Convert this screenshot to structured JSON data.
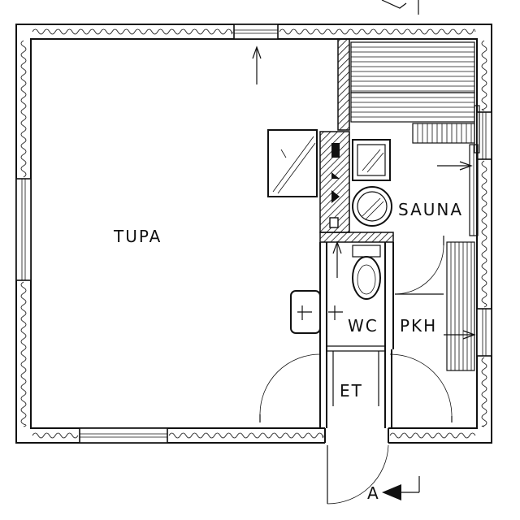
{
  "rooms": {
    "tupa": "TUPA",
    "sauna": "SAUNA",
    "wc": "WC",
    "pkh": "PKH",
    "et": "ET"
  },
  "section_marker": "A",
  "colors": {
    "ink": "#111111",
    "paper": "#ffffff"
  }
}
